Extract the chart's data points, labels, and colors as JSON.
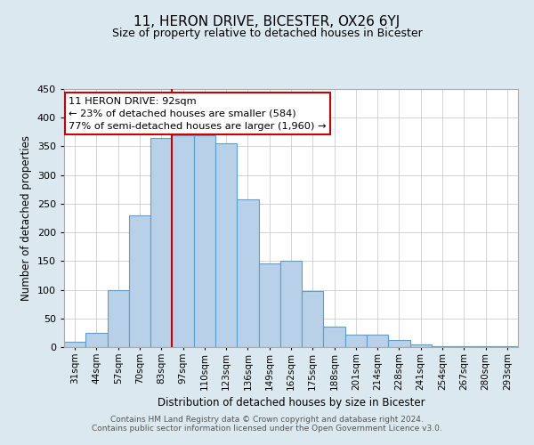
{
  "title": "11, HERON DRIVE, BICESTER, OX26 6YJ",
  "subtitle": "Size of property relative to detached houses in Bicester",
  "xlabel": "Distribution of detached houses by size in Bicester",
  "ylabel": "Number of detached properties",
  "categories": [
    "31sqm",
    "44sqm",
    "57sqm",
    "70sqm",
    "83sqm",
    "97sqm",
    "110sqm",
    "123sqm",
    "136sqm",
    "149sqm",
    "162sqm",
    "175sqm",
    "188sqm",
    "201sqm",
    "214sqm",
    "228sqm",
    "241sqm",
    "254sqm",
    "267sqm",
    "280sqm",
    "293sqm"
  ],
  "values": [
    10,
    25,
    100,
    230,
    365,
    370,
    370,
    355,
    258,
    146,
    150,
    97,
    35,
    22,
    22,
    12,
    4,
    2,
    1,
    1,
    1
  ],
  "bar_color": "#b8d0e8",
  "bar_edge_color": "#5a9fd4",
  "vline_x_idx": 4.5,
  "vline_color": "#cc0000",
  "annotation_title": "11 HERON DRIVE: 92sqm",
  "annotation_line1": "← 23% of detached houses are smaller (584)",
  "annotation_line2": "77% of semi-detached houses are larger (1,960) →",
  "annotation_box_color": "#ffffff",
  "annotation_box_edge": "#cc0000",
  "ylim": [
    0,
    450
  ],
  "yticks": [
    0,
    50,
    100,
    150,
    200,
    250,
    300,
    350,
    400,
    450
  ],
  "footer_line1": "Contains HM Land Registry data © Crown copyright and database right 2024.",
  "footer_line2": "Contains public sector information licensed under the Open Government Licence v3.0.",
  "bg_color": "#dce8f0",
  "plot_bg_color": "#ffffff"
}
